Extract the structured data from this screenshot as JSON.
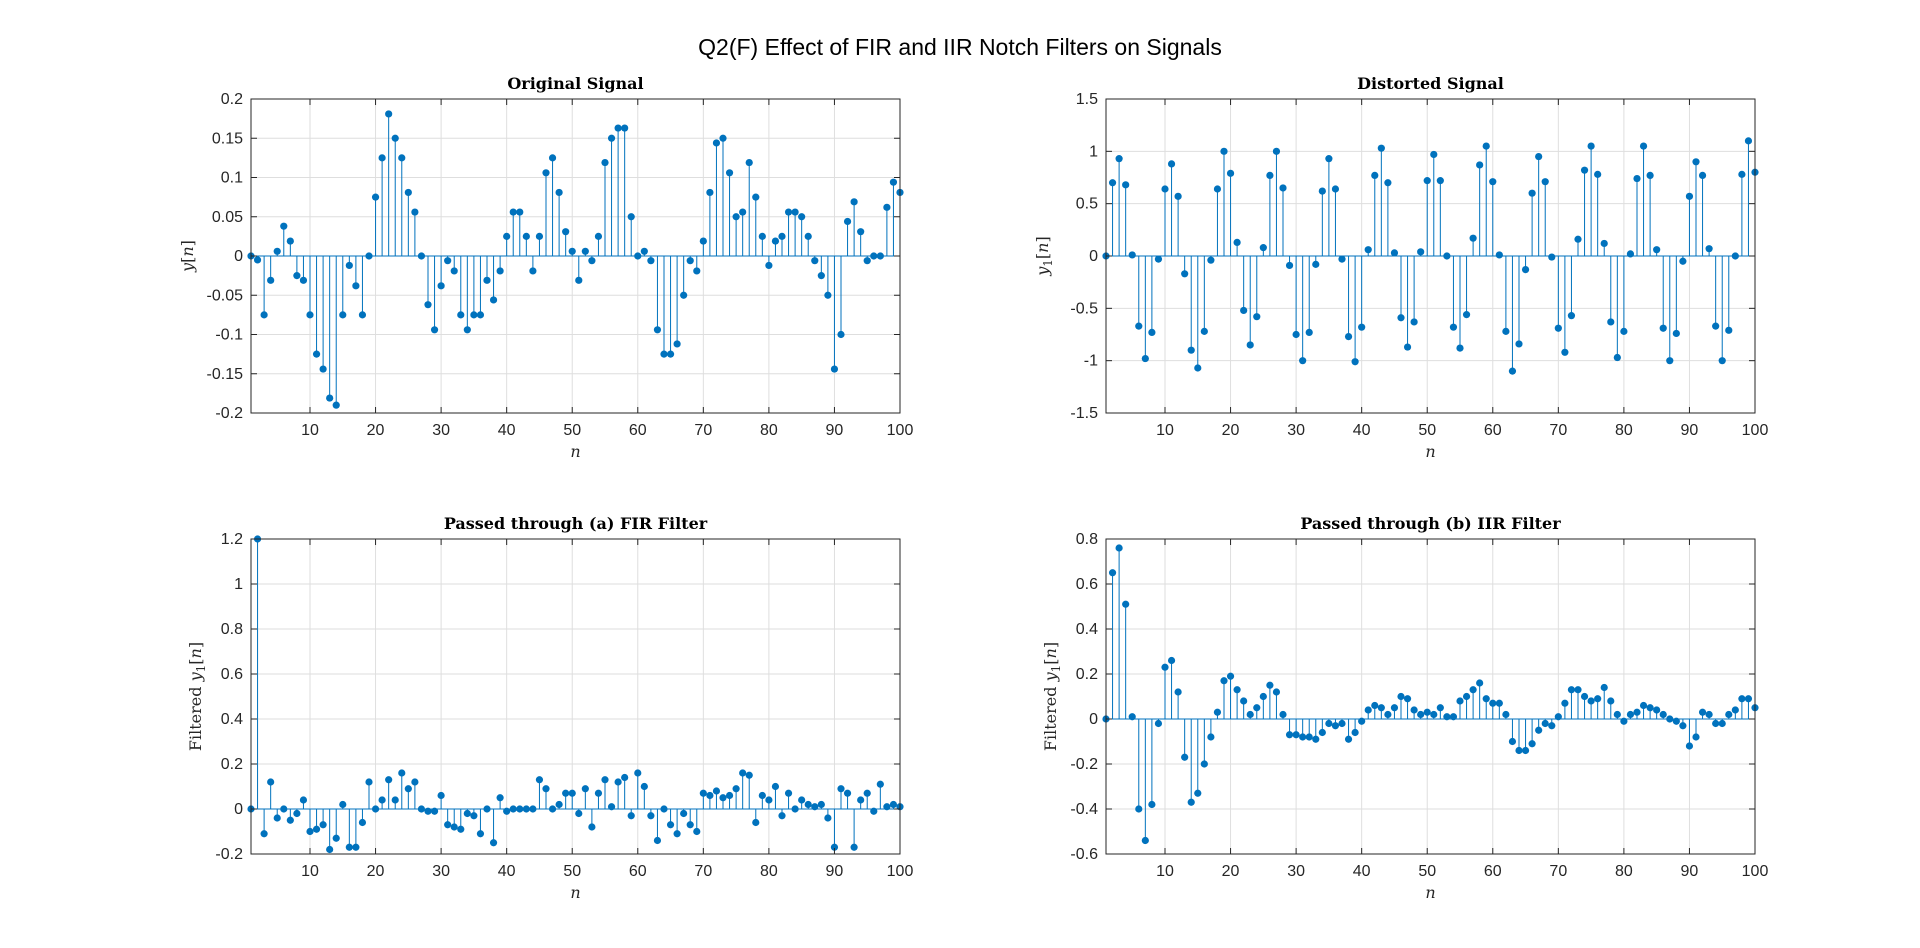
{
  "figure": {
    "title": "Q2(F) Effect of FIR and IIR Notch Filters on Signals"
  },
  "style": {
    "stem_color": "#0072BD",
    "grid_color": "#dedede",
    "axis_color": "#262626"
  },
  "chart_data": [
    {
      "type": "stem",
      "title": "Original Signal",
      "xlabel": "n",
      "ylabel": "y[n]",
      "xlim": [
        1,
        100
      ],
      "ylim": [
        -0.2,
        0.2
      ],
      "xticks": [
        10,
        20,
        30,
        40,
        50,
        60,
        70,
        80,
        90,
        100
      ],
      "yticks": [
        -0.2,
        -0.15,
        -0.1,
        -0.05,
        0,
        0.05,
        0.1,
        0.15,
        0.2
      ],
      "ytick_labels": [
        "-0.2",
        "-0.15",
        "-0.1",
        "-0.05",
        "0",
        "0.05",
        "0.1",
        "0.15",
        "0.2"
      ],
      "grid": true,
      "values": [
        0,
        -0.005,
        -0.075,
        -0.031,
        0.006,
        0.038,
        0.019,
        -0.025,
        -0.031,
        -0.075,
        -0.125,
        -0.144,
        -0.181,
        -0.19,
        -0.075,
        -0.012,
        -0.038,
        -0.075,
        0,
        0.075,
        0.125,
        0.181,
        0.15,
        0.125,
        0.081,
        0.056,
        0,
        -0.062,
        -0.094,
        -0.038,
        -0.006,
        -0.019,
        -0.075,
        -0.094,
        -0.075,
        -0.075,
        -0.031,
        -0.056,
        -0.019,
        0.025,
        0.056,
        0.056,
        0.025,
        -0.019,
        0.025,
        0.106,
        0.125,
        0.081,
        0.031,
        0.006,
        -0.031,
        0.006,
        -0.006,
        0.025,
        0.119,
        0.15,
        0.163,
        0.163,
        0.05,
        0,
        0.006,
        -0.006,
        -0.094,
        -0.125,
        -0.125,
        -0.112,
        -0.05,
        -0.006,
        -0.019,
        0.019,
        0.081,
        0.144,
        0.15,
        0.106,
        0.05,
        0.056,
        0.119,
        0.075,
        0.025,
        -0.012,
        0.019,
        0.025,
        0.056,
        0.056,
        0.05,
        0.025,
        -0.006,
        -0.025,
        -0.05,
        -0.144,
        -0.1,
        0.044,
        0.069,
        0.031,
        -0.006,
        0,
        0,
        0.062,
        0.094,
        0.081
      ]
    },
    {
      "type": "stem",
      "title": "Distorted Signal",
      "xlabel": "n",
      "ylabel": "y1[n]",
      "xlim": [
        1,
        100
      ],
      "ylim": [
        -1.5,
        1.5
      ],
      "xticks": [
        10,
        20,
        30,
        40,
        50,
        60,
        70,
        80,
        90,
        100
      ],
      "yticks": [
        -1.5,
        -1,
        -0.5,
        0,
        0.5,
        1,
        1.5
      ],
      "ytick_labels": [
        "-1.5",
        "-1",
        "-0.5",
        "0",
        "0.5",
        "1",
        "1.5"
      ],
      "grid": true,
      "values": [
        0,
        0.7,
        0.93,
        0.68,
        0.01,
        -0.67,
        -0.98,
        -0.73,
        -0.03,
        0.64,
        0.88,
        0.57,
        -0.17,
        -0.9,
        -1.07,
        -0.72,
        -0.04,
        0.64,
        1.0,
        0.79,
        0.13,
        -0.52,
        -0.85,
        -0.58,
        0.08,
        0.77,
        1.0,
        0.65,
        -0.09,
        -0.75,
        -1.0,
        -0.73,
        -0.08,
        0.62,
        0.93,
        0.64,
        -0.03,
        -0.77,
        -1.01,
        -0.68,
        0.06,
        0.77,
        1.03,
        0.7,
        0.03,
        -0.59,
        -0.87,
        -0.63,
        0.04,
        0.72,
        0.97,
        0.72,
        0.0,
        -0.68,
        -0.88,
        -0.56,
        0.17,
        0.87,
        1.05,
        0.71,
        0.01,
        -0.72,
        -1.1,
        -0.84,
        -0.13,
        0.6,
        0.95,
        0.71,
        -0.01,
        -0.69,
        -0.92,
        -0.57,
        0.16,
        0.82,
        1.05,
        0.78,
        0.12,
        -0.63,
        -0.97,
        -0.72,
        0.02,
        0.74,
        1.05,
        0.77,
        0.06,
        -0.69,
        -1.0,
        -0.74,
        -0.05,
        0.57,
        0.9,
        0.77,
        0.07,
        -0.67,
        -1.0,
        -0.71,
        0.0,
        0.78,
        1.1,
        0.8
      ]
    },
    {
      "type": "stem",
      "title": "Passed through (a) FIR Filter",
      "xlabel": "n",
      "ylabel": "Filtered y1[n]",
      "xlim": [
        1,
        100
      ],
      "ylim": [
        -0.2,
        1.2
      ],
      "xticks": [
        10,
        20,
        30,
        40,
        50,
        60,
        70,
        80,
        90,
        100
      ],
      "yticks": [
        -0.2,
        0,
        0.2,
        0.4,
        0.6,
        0.8,
        1,
        1.2
      ],
      "ytick_labels": [
        "-0.2",
        "0",
        "0.2",
        "0.4",
        "0.6",
        "0.8",
        "1",
        "1.2"
      ],
      "grid": true,
      "values": [
        0,
        1.2,
        -0.11,
        0.12,
        -0.04,
        0,
        -0.05,
        -0.02,
        0.04,
        -0.1,
        -0.09,
        -0.07,
        -0.18,
        -0.13,
        0.02,
        -0.17,
        -0.17,
        -0.06,
        0.12,
        0.0,
        0.04,
        0.13,
        0.04,
        0.16,
        0.09,
        0.12,
        0.0,
        -0.01,
        -0.01,
        0.06,
        -0.07,
        -0.08,
        -0.09,
        -0.02,
        -0.03,
        -0.11,
        0.0,
        -0.15,
        0.05,
        -0.01,
        0.0,
        0.0,
        0.0,
        0.0,
        0.13,
        0.09,
        0.0,
        0.02,
        0.07,
        0.07,
        -0.02,
        0.09,
        -0.08,
        0.07,
        0.13,
        0.01,
        0.12,
        0.14,
        -0.03,
        0.16,
        0.1,
        -0.03,
        -0.14,
        0.0,
        -0.07,
        -0.11,
        -0.02,
        -0.07,
        -0.1,
        0.07,
        0.06,
        0.08,
        0.05,
        0.06,
        0.09,
        0.16,
        0.15,
        -0.06,
        0.06,
        0.04,
        0.1,
        -0.03,
        0.07,
        0.0,
        0.04,
        0.02,
        0.01,
        0.02,
        -0.04,
        -0.17,
        0.09,
        0.07,
        -0.17,
        0.04,
        0.07,
        -0.01,
        0.11,
        0.01,
        0.02,
        0.01
      ]
    },
    {
      "type": "stem",
      "title": "Passed through (b) IIR Filter",
      "xlabel": "n",
      "ylabel": "Filtered y1[n]",
      "xlim": [
        1,
        100
      ],
      "ylim": [
        -0.6,
        0.8
      ],
      "xticks": [
        10,
        20,
        30,
        40,
        50,
        60,
        70,
        80,
        90,
        100
      ],
      "yticks": [
        -0.6,
        -0.4,
        -0.2,
        0,
        0.2,
        0.4,
        0.6,
        0.8
      ],
      "ytick_labels": [
        "-0.6",
        "-0.4",
        "-0.2",
        "0",
        "0.2",
        "0.4",
        "0.6",
        "0.8"
      ],
      "grid": true,
      "values": [
        0,
        0.65,
        0.76,
        0.51,
        0.01,
        -0.4,
        -0.54,
        -0.38,
        -0.02,
        0.23,
        0.26,
        0.12,
        -0.17,
        -0.37,
        -0.33,
        -0.2,
        -0.08,
        0.03,
        0.17,
        0.19,
        0.13,
        0.08,
        0.02,
        0.05,
        0.1,
        0.15,
        0.12,
        0.02,
        -0.07,
        -0.07,
        -0.08,
        -0.08,
        -0.09,
        -0.06,
        -0.02,
        -0.03,
        -0.02,
        -0.09,
        -0.06,
        -0.01,
        0.04,
        0.06,
        0.05,
        0.02,
        0.05,
        0.1,
        0.09,
        0.04,
        0.02,
        0.03,
        0.02,
        0.05,
        0.01,
        0.01,
        0.08,
        0.1,
        0.13,
        0.16,
        0.09,
        0.07,
        0.07,
        0.02,
        -0.1,
        -0.14,
        -0.14,
        -0.11,
        -0.05,
        -0.02,
        -0.03,
        0.01,
        0.07,
        0.13,
        0.13,
        0.1,
        0.08,
        0.09,
        0.14,
        0.08,
        0.02,
        -0.01,
        0.02,
        0.03,
        0.06,
        0.05,
        0.04,
        0.02,
        0.0,
        -0.01,
        -0.03,
        -0.12,
        -0.08,
        0.03,
        0.02,
        -0.02,
        -0.02,
        0.02,
        0.04,
        0.09,
        0.09,
        0.05
      ]
    }
  ]
}
